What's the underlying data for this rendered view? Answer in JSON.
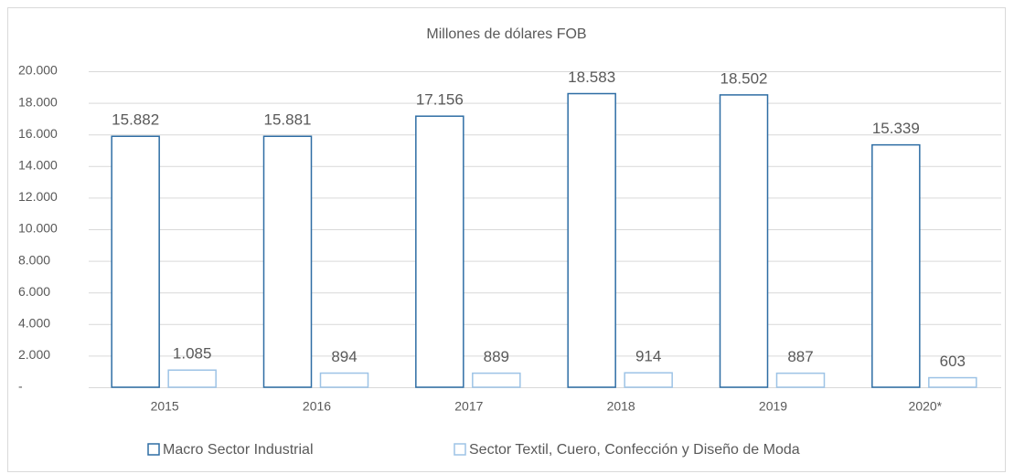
{
  "chart_data": {
    "type": "bar",
    "title": "Millones de dólares FOB",
    "categories": [
      "2015",
      "2016",
      "2017",
      "2018",
      "2019",
      "2020*"
    ],
    "series": [
      {
        "name": "Macro Sector Industrial",
        "color": "#2e6da4",
        "values": [
          15882,
          15881,
          17156,
          18583,
          18502,
          15339
        ],
        "value_labels": [
          "15.882",
          "15.881",
          "17.156",
          "18.583",
          "18.502",
          "15.339"
        ]
      },
      {
        "name": "Sector Textil, Cuero, Confección y Diseño de Moda",
        "color": "#9dc3e6",
        "values": [
          1085,
          894,
          889,
          914,
          887,
          603
        ],
        "value_labels": [
          "1.085",
          "894",
          "889",
          "914",
          "887",
          "603"
        ]
      }
    ],
    "ylim": [
      0,
      20000
    ],
    "yticks": [
      {
        "value": 0,
        "label": "-"
      },
      {
        "value": 2000,
        "label": "2.000"
      },
      {
        "value": 4000,
        "label": "4.000"
      },
      {
        "value": 6000,
        "label": "6.000"
      },
      {
        "value": 8000,
        "label": "8.000"
      },
      {
        "value": 10000,
        "label": "10.000"
      },
      {
        "value": 12000,
        "label": "12.000"
      },
      {
        "value": 14000,
        "label": "14.000"
      },
      {
        "value": 16000,
        "label": "16.000"
      },
      {
        "value": 18000,
        "label": "18.000"
      },
      {
        "value": 20000,
        "label": "20.000"
      }
    ],
    "grid": true,
    "legend": "bottom"
  }
}
